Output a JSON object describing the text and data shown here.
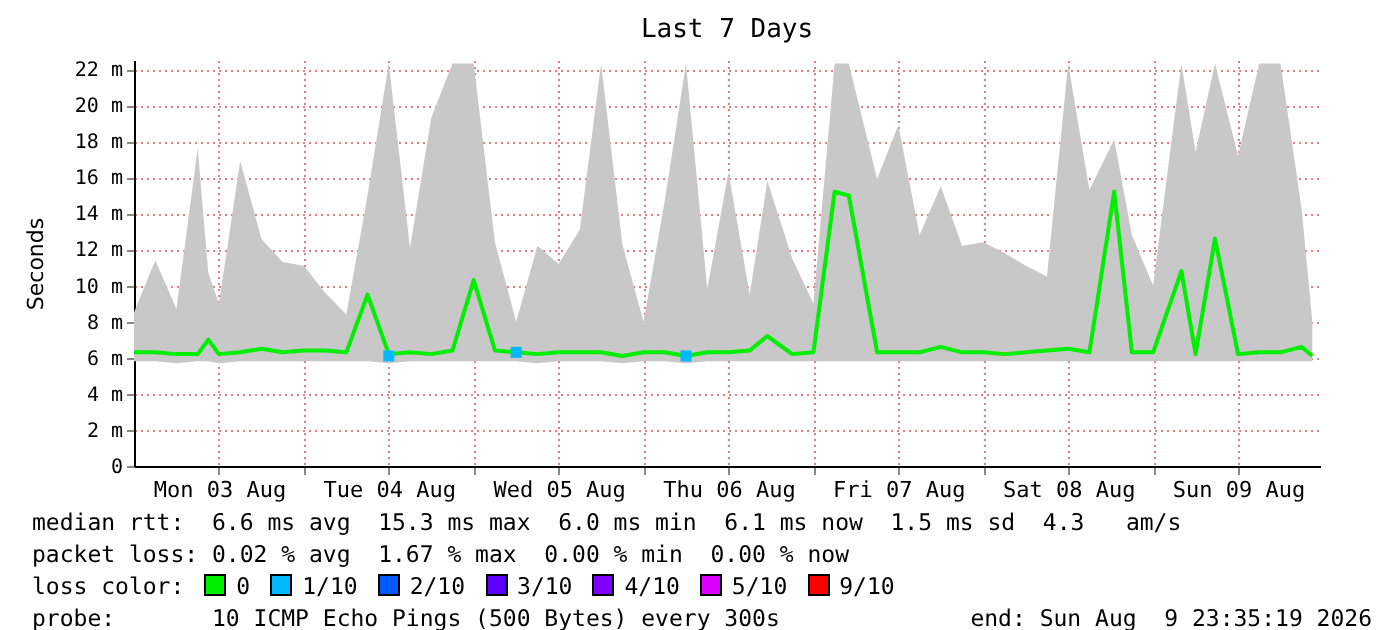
{
  "chart_data": {
    "type": "line",
    "title": "Last 7 Days",
    "ylabel": "Seconds",
    "x": [
      "2026-08-03T00:00",
      "2026-08-03T03:00",
      "2026-08-03T06:00",
      "2026-08-03T09:00",
      "2026-08-03T10:30",
      "2026-08-03T12:00",
      "2026-08-03T15:00",
      "2026-08-03T18:00",
      "2026-08-03T21:00",
      "2026-08-04T00:00",
      "2026-08-04T03:00",
      "2026-08-04T06:00",
      "2026-08-04T09:00",
      "2026-08-04T12:00",
      "2026-08-04T15:00",
      "2026-08-04T18:00",
      "2026-08-04T21:00",
      "2026-08-05T00:00",
      "2026-08-05T03:00",
      "2026-08-05T06:00",
      "2026-08-05T09:00",
      "2026-08-05T12:00",
      "2026-08-05T15:00",
      "2026-08-05T18:00",
      "2026-08-05T21:00",
      "2026-08-06T00:00",
      "2026-08-06T03:00",
      "2026-08-06T06:00",
      "2026-08-06T09:00",
      "2026-08-06T12:00",
      "2026-08-06T15:00",
      "2026-08-06T17:30",
      "2026-08-06T21:00",
      "2026-08-07T00:00",
      "2026-08-07T03:00",
      "2026-08-07T05:00",
      "2026-08-07T09:00",
      "2026-08-07T12:00",
      "2026-08-07T15:00",
      "2026-08-07T18:00",
      "2026-08-07T21:00",
      "2026-08-08T00:00",
      "2026-08-08T03:00",
      "2026-08-08T06:00",
      "2026-08-08T09:00",
      "2026-08-08T12:00",
      "2026-08-08T15:00",
      "2026-08-08T18:30",
      "2026-08-08T21:00",
      "2026-08-09T00:00",
      "2026-08-09T04:00",
      "2026-08-09T06:00",
      "2026-08-09T08:45",
      "2026-08-09T12:00",
      "2026-08-09T15:00",
      "2026-08-09T18:00",
      "2026-08-09T21:00",
      "2026-08-09T22:30"
    ],
    "series": [
      {
        "name": "0",
        "color": "#00ee00",
        "values": [
          6.3,
          6.3,
          6.2,
          6.2,
          7.0,
          6.2,
          6.3,
          6.5,
          6.3,
          6.4,
          6.4,
          6.3,
          9.5,
          6.2,
          6.3,
          6.2,
          6.4,
          10.3,
          6.4,
          6.3,
          6.2,
          6.3,
          6.3,
          6.3,
          6.1,
          6.3,
          6.3,
          6.1,
          6.3,
          6.3,
          6.4,
          7.2,
          6.2,
          6.3,
          15.2,
          15.0,
          6.3,
          6.3,
          6.3,
          6.6,
          6.3,
          6.3,
          6.2,
          6.3,
          6.4,
          6.5,
          6.3,
          15.2,
          6.3,
          6.3,
          10.8,
          6.2,
          12.6,
          6.2,
          6.3,
          6.3,
          6.6,
          6.1
        ],
        "lower": [
          5.8,
          5.8,
          5.7,
          5.8,
          5.8,
          5.7,
          5.8,
          5.8,
          5.8,
          5.8,
          5.8,
          5.8,
          5.8,
          5.7,
          5.8,
          5.8,
          5.8,
          5.8,
          5.8,
          5.8,
          5.7,
          5.8,
          5.8,
          5.8,
          5.7,
          5.8,
          5.8,
          5.7,
          5.8,
          5.8,
          5.8,
          5.8,
          5.8,
          5.8,
          5.8,
          5.8,
          5.8,
          5.8,
          5.8,
          5.8,
          5.8,
          5.8,
          5.8,
          5.8,
          5.8,
          5.8,
          5.8,
          5.8,
          5.8,
          5.8,
          5.8,
          5.8,
          5.8,
          5.8,
          5.8,
          5.8,
          5.8,
          5.8
        ],
        "upper": [
          8.5,
          11.4,
          8.7,
          17.6,
          10.7,
          9.0,
          16.9,
          12.6,
          11.3,
          11.1,
          9.6,
          8.4,
          15.0,
          22.3,
          12.1,
          19.3,
          22.3,
          22.3,
          12.4,
          8.0,
          12.2,
          11.2,
          13.1,
          22.3,
          12.3,
          8.0,
          14.7,
          22.3,
          9.8,
          16.3,
          9.5,
          15.8,
          11.5,
          9.0,
          22.3,
          22.3,
          15.9,
          18.9,
          12.8,
          15.5,
          12.2,
          12.4,
          11.8,
          11.1,
          10.5,
          22.3,
          15.3,
          18.1,
          12.8,
          10.0,
          22.3,
          17.4,
          22.3,
          17.2,
          22.3,
          22.3,
          14.2,
          8.0
        ]
      },
      {
        "name": "1/10",
        "color": "#00b8ff",
        "type": "scatter",
        "marker": "square",
        "x": [
          "2026-08-04T12:00",
          "2026-08-05T06:00",
          "2026-08-06T06:00"
        ],
        "values": [
          6.1,
          6.3,
          6.1
        ]
      },
      {
        "name": "2/10",
        "color": "#0059ff",
        "values": [
          null,
          null,
          null,
          null,
          null,
          null,
          null,
          null,
          null,
          null,
          null,
          null,
          null,
          null,
          null,
          null,
          null,
          null,
          null,
          null,
          null,
          null,
          null,
          null,
          null,
          null,
          null,
          null,
          null,
          null,
          null,
          null,
          null,
          null,
          null,
          null,
          null,
          null,
          null,
          null,
          null,
          null,
          null,
          null,
          null,
          null,
          null,
          null,
          null,
          null,
          null,
          null,
          null,
          null,
          null,
          null,
          null,
          null
        ]
      },
      {
        "name": "3/10",
        "color": "#5e00ff",
        "values": [
          null,
          null,
          null,
          null,
          null,
          null,
          null,
          null,
          null,
          null,
          null,
          null,
          null,
          null,
          null,
          null,
          null,
          null,
          null,
          null,
          null,
          null,
          null,
          null,
          null,
          null,
          null,
          null,
          null,
          null,
          null,
          null,
          null,
          null,
          null,
          null,
          null,
          null,
          null,
          null,
          null,
          null,
          null,
          null,
          null,
          null,
          null,
          null,
          null,
          null,
          null,
          null,
          null,
          null,
          null,
          null,
          null,
          null
        ]
      },
      {
        "name": "4/10",
        "color": "#7e00ff",
        "values": [
          null,
          null,
          null,
          null,
          null,
          null,
          null,
          null,
          null,
          null,
          null,
          null,
          null,
          null,
          null,
          null,
          null,
          null,
          null,
          null,
          null,
          null,
          null,
          null,
          null,
          null,
          null,
          null,
          null,
          null,
          null,
          null,
          null,
          null,
          null,
          null,
          null,
          null,
          null,
          null,
          null,
          null,
          null,
          null,
          null,
          null,
          null,
          null,
          null,
          null,
          null,
          null,
          null,
          null,
          null,
          null,
          null,
          null
        ]
      },
      {
        "name": "5/10",
        "color": "#dd00ff",
        "values": [
          null,
          null,
          null,
          null,
          null,
          null,
          null,
          null,
          null,
          null,
          null,
          null,
          null,
          null,
          null,
          null,
          null,
          null,
          null,
          null,
          null,
          null,
          null,
          null,
          null,
          null,
          null,
          null,
          null,
          null,
          null,
          null,
          null,
          null,
          null,
          null,
          null,
          null,
          null,
          null,
          null,
          null,
          null,
          null,
          null,
          null,
          null,
          null,
          null,
          null,
          null,
          null,
          null,
          null,
          null,
          null,
          null,
          null
        ]
      },
      {
        "name": "9/10",
        "color": "#ff0000",
        "values": [
          null,
          null,
          null,
          null,
          null,
          null,
          null,
          null,
          null,
          null,
          null,
          null,
          null,
          null,
          null,
          null,
          null,
          null,
          null,
          null,
          null,
          null,
          null,
          null,
          null,
          null,
          null,
          null,
          null,
          null,
          null,
          null,
          null,
          null,
          null,
          null,
          null,
          null,
          null,
          null,
          null,
          null,
          null,
          null,
          null,
          null,
          null,
          null,
          null,
          null,
          null,
          null,
          null,
          null,
          null,
          null,
          null,
          null
        ]
      }
    ],
    "xlim": [
      "2026-08-03T00:00",
      "2026-08-09T23:35"
    ],
    "xticks": [
      {
        "value": "2026-08-03T12:00",
        "label": "Mon 03 Aug"
      },
      {
        "value": "2026-08-04T00:00",
        "label": null
      },
      {
        "value": "2026-08-04T12:00",
        "label": "Tue 04 Aug"
      },
      {
        "value": "2026-08-05T00:00",
        "label": null
      },
      {
        "value": "2026-08-05T12:00",
        "label": "Wed 05 Aug"
      },
      {
        "value": "2026-08-06T00:00",
        "label": null
      },
      {
        "value": "2026-08-06T12:00",
        "label": "Thu 06 Aug"
      },
      {
        "value": "2026-08-07T00:00",
        "label": null
      },
      {
        "value": "2026-08-07T12:00",
        "label": "Fri 07 Aug"
      },
      {
        "value": "2026-08-08T00:00",
        "label": null
      },
      {
        "value": "2026-08-08T12:00",
        "label": "Sat 08 Aug"
      },
      {
        "value": "2026-08-09T00:00",
        "label": null
      },
      {
        "value": "2026-08-09T12:00",
        "label": "Sun 09 Aug"
      }
    ],
    "ylim": [
      0,
      22.5
    ],
    "yticks": [
      0,
      {
        "value": 2,
        "label": "2 m"
      },
      {
        "value": 4,
        "label": "4 m"
      },
      {
        "value": 6,
        "label": "6 m"
      },
      {
        "value": 8,
        "label": "8 m"
      },
      {
        "value": 10,
        "label": "10 m"
      },
      {
        "value": 12,
        "label": "12 m"
      },
      {
        "value": 14,
        "label": "14 m"
      },
      {
        "value": 16,
        "label": "16 m"
      },
      {
        "value": 18,
        "label": "18 m"
      },
      {
        "value": 20,
        "label": "20 m"
      },
      {
        "value": 22,
        "label": "22 m"
      }
    ],
    "grid": true,
    "legend": "bottom",
    "legend_title": "loss color:",
    "line_style": "solid",
    "annotations": [
      "median rtt:  6.6 ms avg  15.3 ms max  6.0 ms min  6.1 ms now  1.5 ms sd  4.3   am/s",
      "packet loss: 0.02 % avg  1.67 % max  0.00 % min  0.00 % now",
      "probe:       10 ICMP Echo Pings (500 Bytes) every 300s",
      "end: Sun Aug  9 23:35:19 2026"
    ]
  }
}
